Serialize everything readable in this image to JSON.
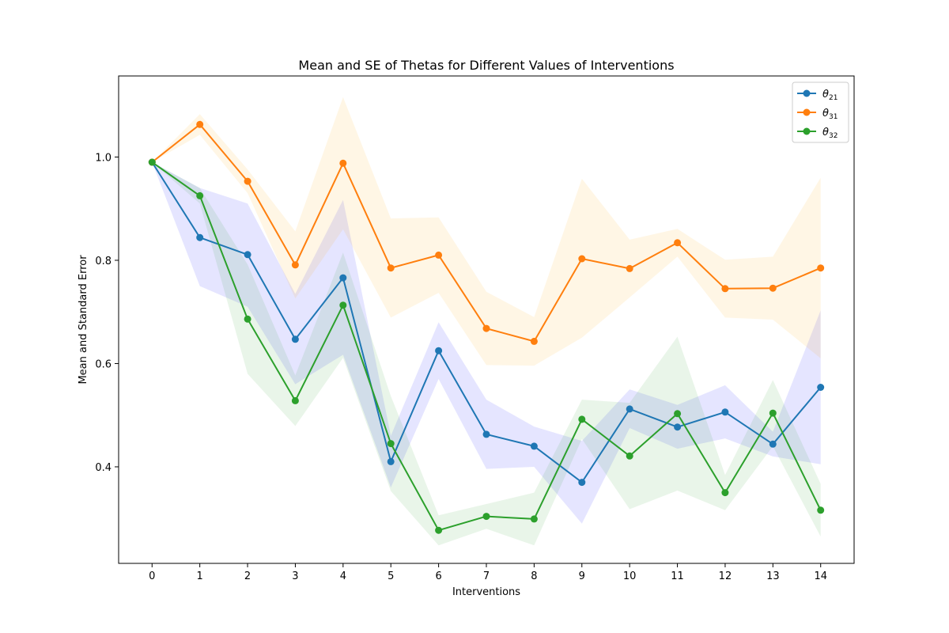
{
  "chart_data": {
    "type": "line",
    "title": "Mean and SE of Thetas for Different Values of Interventions",
    "xlabel": "Interventions",
    "ylabel": "Mean and Standard Error",
    "x": [
      0,
      1,
      2,
      3,
      4,
      5,
      6,
      7,
      8,
      9,
      10,
      11,
      12,
      13,
      14
    ],
    "xlim": [
      -0.7,
      14.7
    ],
    "ylim": [
      0.213,
      1.157
    ],
    "yticks": [
      0.4,
      0.6,
      0.8,
      1.0
    ],
    "yticklabels": [
      "0.4",
      "0.6",
      "0.8",
      "1.0"
    ],
    "legend_position": "upper right",
    "grid": false,
    "series": [
      {
        "name": "θ21",
        "legend_main": "θ",
        "legend_sub": "21",
        "color": "#1f77b4",
        "band_color": "#0000ff",
        "values": [
          0.99,
          0.844,
          0.811,
          0.647,
          0.766,
          0.41,
          0.625,
          0.463,
          0.44,
          0.37,
          0.512,
          0.477,
          0.506,
          0.444,
          0.554
        ],
        "lower": [
          0.99,
          0.75,
          0.71,
          0.56,
          0.617,
          0.36,
          0.57,
          0.396,
          0.4,
          0.29,
          0.475,
          0.435,
          0.455,
          0.42,
          0.405
        ],
        "upper": [
          0.99,
          0.94,
          0.91,
          0.735,
          0.917,
          0.46,
          0.68,
          0.53,
          0.478,
          0.45,
          0.55,
          0.52,
          0.558,
          0.468,
          0.703
        ]
      },
      {
        "name": "θ31",
        "legend_main": "θ",
        "legend_sub": "31",
        "color": "#ff7f0e",
        "band_color": "#ffa500",
        "values": [
          0.99,
          1.063,
          0.953,
          0.791,
          0.988,
          0.785,
          0.81,
          0.668,
          0.643,
          0.803,
          0.784,
          0.834,
          0.745,
          0.746,
          0.785
        ],
        "lower": [
          0.99,
          1.043,
          0.93,
          0.726,
          0.86,
          0.689,
          0.737,
          0.597,
          0.596,
          0.65,
          0.728,
          0.807,
          0.689,
          0.685,
          0.61
        ],
        "upper": [
          0.99,
          1.083,
          0.976,
          0.856,
          1.116,
          0.881,
          0.883,
          0.739,
          0.69,
          0.958,
          0.84,
          0.861,
          0.801,
          0.807,
          0.96
        ]
      },
      {
        "name": "θ32",
        "legend_main": "θ",
        "legend_sub": "32",
        "color": "#2ca02c",
        "band_color": "#2ca02c",
        "values": [
          0.99,
          0.925,
          0.686,
          0.528,
          0.713,
          0.445,
          0.277,
          0.304,
          0.299,
          0.492,
          0.421,
          0.503,
          0.35,
          0.504,
          0.316
        ],
        "lower": [
          0.99,
          0.91,
          0.58,
          0.479,
          0.611,
          0.353,
          0.248,
          0.28,
          0.248,
          0.454,
          0.318,
          0.354,
          0.316,
          0.44,
          0.265
        ],
        "upper": [
          0.99,
          0.94,
          0.792,
          0.577,
          0.815,
          0.537,
          0.306,
          0.328,
          0.35,
          0.53,
          0.524,
          0.652,
          0.384,
          0.568,
          0.367
        ]
      }
    ]
  }
}
